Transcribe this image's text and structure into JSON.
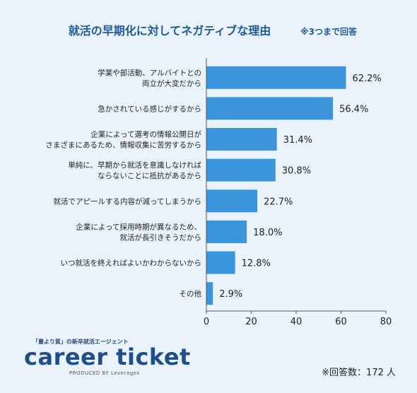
{
  "chart_data": {
    "type": "bar",
    "orientation": "horizontal",
    "title": "就活の早期化に対してネガティブな理由",
    "subtitle": "※3つまで回答",
    "categories": [
      [
        "学業や部活動、アルバイトとの",
        "両立が大変だから"
      ],
      [
        "急かされている感じがするから"
      ],
      [
        "企業によって選考の情報公開日が",
        "さまざまにあるため、情報収集に苦労するから"
      ],
      [
        "単純に、早期から就活を意識しなければ",
        "ならないことに抵抗があるから"
      ],
      [
        "就活でアピールする内容が減ってしまうから"
      ],
      [
        "企業によって採用時期が異なるため、",
        "就活が長引きそうだから"
      ],
      [
        "いつ就活を終えればよいかわからないから"
      ],
      [
        "その他"
      ]
    ],
    "values": [
      62.2,
      56.4,
      31.4,
      30.8,
      22.7,
      18.0,
      12.8,
      2.9
    ],
    "value_labels": [
      "62.2%",
      "56.4%",
      "31.4%",
      "30.8%",
      "22.7%",
      "18.0%",
      "12.8%",
      "2.9%"
    ],
    "xlim": [
      0,
      80
    ],
    "xticks": [
      "0",
      "20",
      "40",
      "60",
      "80"
    ],
    "bar_color": "#3a95dc",
    "title_color": "#1f5a96",
    "grid": false
  },
  "footer": {
    "brand_tagline": "「量より質」の新卒就活エージェント",
    "brand_logo": "career ticket",
    "brand_sub": "PRODUCED BY Leverages",
    "respondents": "※回答数：172 人"
  }
}
